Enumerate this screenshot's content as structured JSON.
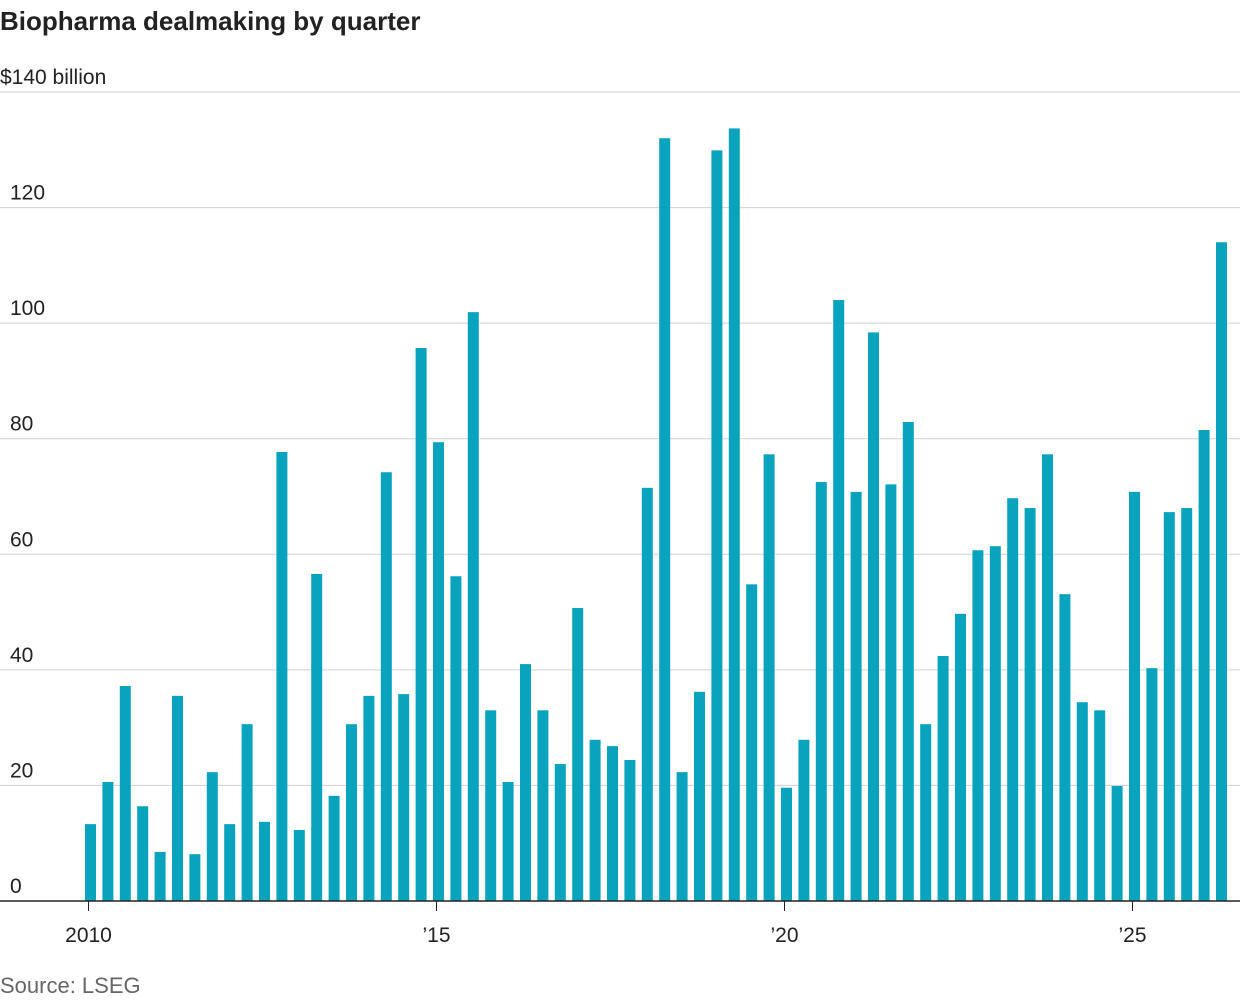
{
  "chart_data": {
    "type": "bar",
    "title": "Biopharma dealmaking by quarter",
    "source": "Source: LSEG",
    "categories": [
      "2010",
      null,
      null,
      null,
      null,
      null,
      null,
      null,
      null,
      null,
      null,
      null,
      null,
      null,
      null,
      null,
      null,
      null,
      null,
      null,
      "’15",
      null,
      null,
      null,
      null,
      null,
      null,
      null,
      null,
      null,
      null,
      null,
      null,
      null,
      null,
      null,
      null,
      null,
      null,
      null,
      "’20",
      null,
      null,
      null,
      null,
      null,
      null,
      null,
      null,
      null,
      null,
      null,
      null,
      null,
      null,
      null,
      null,
      null,
      null,
      null,
      "’25",
      null,
      null,
      null,
      null,
      null
    ],
    "values": [
      13.3,
      20.6,
      37.2,
      16.4,
      8.5,
      35.5,
      8.1,
      22.3,
      13.3,
      30.6,
      13.7,
      77.7,
      12.3,
      56.6,
      18.2,
      30.6,
      35.5,
      74.2,
      35.8,
      95.7,
      79.4,
      56.2,
      101.9,
      33.0,
      20.6,
      41.0,
      33.0,
      23.7,
      50.7,
      27.9,
      26.8,
      24.4,
      71.5,
      132,
      22.3,
      36.2,
      129.9,
      133.7,
      54.8,
      77.3,
      19.6,
      27.9,
      72.5,
      104,
      70.8,
      98.4,
      72.1,
      82.9,
      30.6,
      42.4,
      49.7,
      60.7,
      61.4,
      69.7,
      68,
      77.3,
      53.1,
      34.4,
      33.0,
      19.9,
      70.8,
      40.3,
      67.3,
      68,
      81.5,
      114
    ],
    "color": "#0aa3bd",
    "ylim": [
      0,
      140
    ],
    "yticks": [
      0,
      20,
      40,
      60,
      80,
      100,
      120,
      {
        "value": 140,
        "label": "$140 billion"
      }
    ],
    "grid": true
  }
}
